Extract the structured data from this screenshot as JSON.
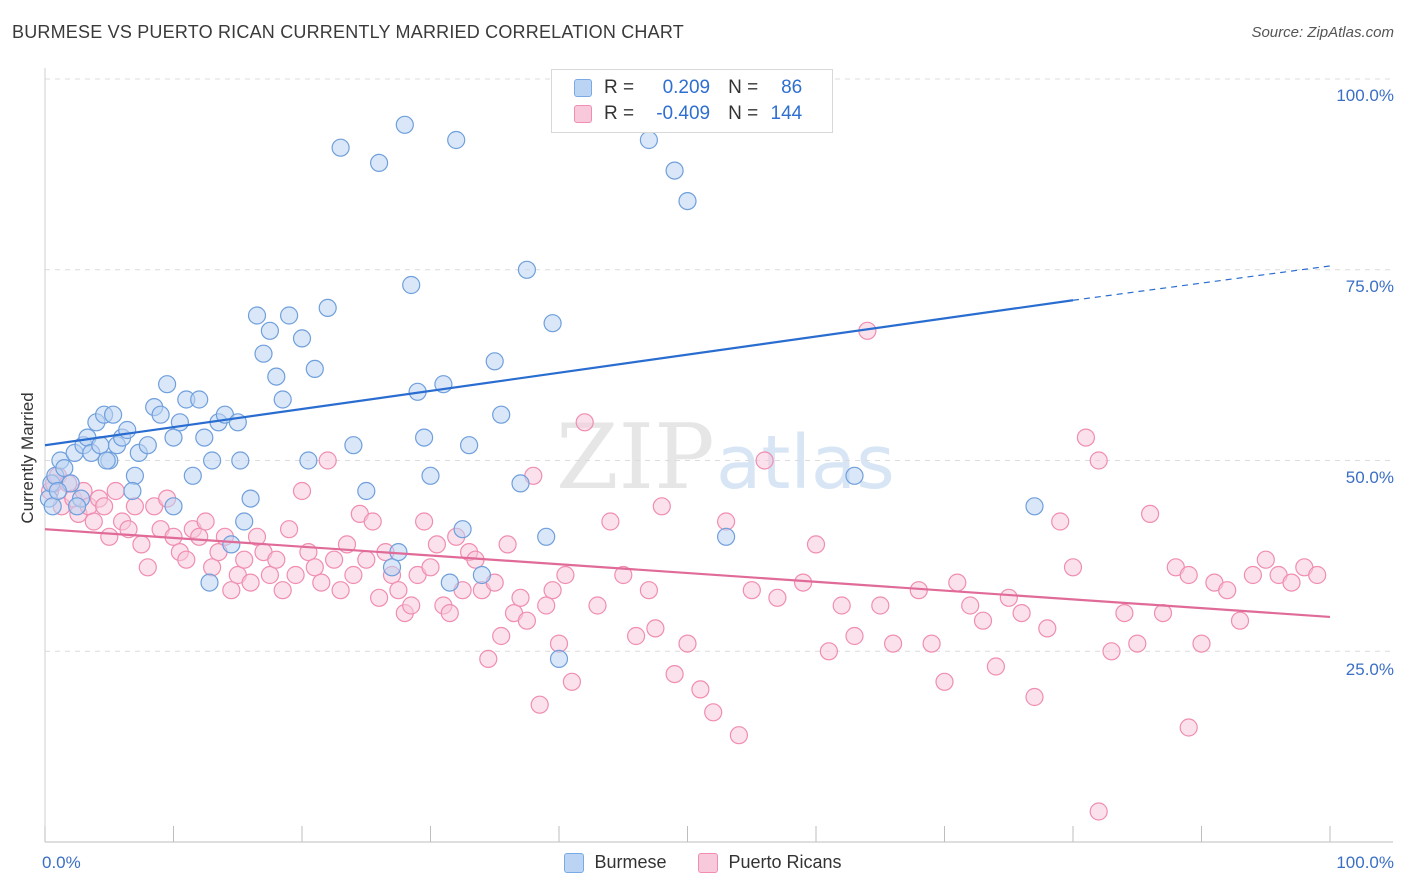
{
  "header": {
    "title": "BURMESE VS PUERTO RICAN CURRENTLY MARRIED CORRELATION CHART",
    "source": "Source: ZipAtlas.com"
  },
  "watermark": {
    "zip": "ZIP",
    "atlas": "atlas"
  },
  "legend": {
    "r_label": "R =",
    "n_label": "N =",
    "series": [
      {
        "name": "Burmese",
        "r": "0.209",
        "n": "86",
        "color": "#7aaae6",
        "fill": "#bcd4f3"
      },
      {
        "name": "Puerto Ricans",
        "r": "-0.409",
        "n": "144",
        "color": "#f08db0",
        "fill": "#f8c9da"
      }
    ]
  },
  "chart_data": {
    "type": "scatter",
    "title": "BURMESE VS PUERTO RICAN CURRENTLY MARRIED CORRELATION CHART",
    "xlabel": "",
    "ylabel": "Currently Married",
    "xlim": [
      0,
      100
    ],
    "ylim": [
      0,
      100
    ],
    "x_tick_labels": [
      "0.0%",
      "100.0%"
    ],
    "y_tick_labels": [
      "100.0%",
      "75.0%",
      "50.0%",
      "25.0%"
    ],
    "y_gridlines": [
      100,
      75,
      50,
      25
    ],
    "series": [
      {
        "name": "Burmese",
        "color": "#5b8fd9",
        "trend": {
          "x0": 0,
          "y0": 52,
          "x1": 80,
          "y1": 71,
          "dash_x1": 100,
          "dash_y1": 75.5,
          "color": "#2a6dd0"
        },
        "points": [
          [
            0.3,
            45
          ],
          [
            0.5,
            47
          ],
          [
            0.8,
            48
          ],
          [
            1.2,
            50
          ],
          [
            1.5,
            49
          ],
          [
            2,
            47
          ],
          [
            2.3,
            51
          ],
          [
            2.8,
            45
          ],
          [
            3,
            52
          ],
          [
            3.3,
            53
          ],
          [
            3.6,
            51
          ],
          [
            4,
            55
          ],
          [
            4.3,
            52
          ],
          [
            4.6,
            56
          ],
          [
            5,
            50
          ],
          [
            5.3,
            56
          ],
          [
            5.6,
            52
          ],
          [
            6,
            53
          ],
          [
            6.4,
            54
          ],
          [
            7,
            48
          ],
          [
            7.3,
            51
          ],
          [
            8,
            52
          ],
          [
            8.5,
            57
          ],
          [
            9,
            56
          ],
          [
            9.5,
            60
          ],
          [
            10,
            53
          ],
          [
            10.5,
            55
          ],
          [
            11,
            58
          ],
          [
            11.5,
            48
          ],
          [
            12,
            58
          ],
          [
            12.4,
            53
          ],
          [
            12.8,
            34
          ],
          [
            13,
            50
          ],
          [
            13.5,
            55
          ],
          [
            14,
            56
          ],
          [
            14.5,
            39
          ],
          [
            15,
            55
          ],
          [
            15.5,
            42
          ],
          [
            16,
            45
          ],
          [
            16.5,
            69
          ],
          [
            17,
            64
          ],
          [
            17.5,
            67
          ],
          [
            18,
            61
          ],
          [
            18.5,
            58
          ],
          [
            19,
            69
          ],
          [
            20,
            66
          ],
          [
            21,
            62
          ],
          [
            22,
            70
          ],
          [
            23,
            91
          ],
          [
            24,
            52
          ],
          [
            25,
            46
          ],
          [
            26,
            89
          ],
          [
            27,
            36
          ],
          [
            28,
            94
          ],
          [
            28.5,
            73
          ],
          [
            29,
            59
          ],
          [
            29.5,
            53
          ],
          [
            30,
            48
          ],
          [
            31,
            60
          ],
          [
            31.5,
            34
          ],
          [
            32,
            92
          ],
          [
            32.5,
            41
          ],
          [
            33,
            52
          ],
          [
            34,
            35
          ],
          [
            35,
            63
          ],
          [
            35.5,
            56
          ],
          [
            37,
            47
          ],
          [
            37.5,
            75
          ],
          [
            39,
            40
          ],
          [
            39.5,
            68
          ],
          [
            40,
            24
          ],
          [
            47,
            92
          ],
          [
            49,
            88
          ],
          [
            50,
            84
          ],
          [
            53,
            40
          ],
          [
            63,
            48
          ],
          [
            77,
            44
          ],
          [
            0.6,
            44
          ],
          [
            1,
            46
          ],
          [
            2.5,
            44
          ],
          [
            4.8,
            50
          ],
          [
            6.8,
            46
          ],
          [
            10,
            44
          ],
          [
            15.2,
            50
          ],
          [
            20.5,
            50
          ],
          [
            27.5,
            38
          ]
        ]
      },
      {
        "name": "Puerto Ricans",
        "color": "#f08db0",
        "trend": {
          "x0": 0,
          "y0": 41,
          "x1": 100,
          "y1": 29.5,
          "color": "#e06b98"
        },
        "points": [
          [
            0.4,
            46
          ],
          [
            0.7,
            47
          ],
          [
            1,
            48
          ],
          [
            1.3,
            44
          ],
          [
            1.8,
            47
          ],
          [
            2.2,
            45
          ],
          [
            2.6,
            43
          ],
          [
            3,
            46
          ],
          [
            3.4,
            44
          ],
          [
            3.8,
            42
          ],
          [
            4.2,
            45
          ],
          [
            4.6,
            44
          ],
          [
            5,
            40
          ],
          [
            5.5,
            46
          ],
          [
            6,
            42
          ],
          [
            6.5,
            41
          ],
          [
            7,
            44
          ],
          [
            7.5,
            39
          ],
          [
            8,
            36
          ],
          [
            8.5,
            44
          ],
          [
            9,
            41
          ],
          [
            9.5,
            45
          ],
          [
            10,
            40
          ],
          [
            10.5,
            38
          ],
          [
            11,
            37
          ],
          [
            11.5,
            41
          ],
          [
            12,
            40
          ],
          [
            12.5,
            42
          ],
          [
            13,
            36
          ],
          [
            13.5,
            38
          ],
          [
            14,
            40
          ],
          [
            14.5,
            33
          ],
          [
            15,
            35
          ],
          [
            15.5,
            37
          ],
          [
            16,
            34
          ],
          [
            16.5,
            40
          ],
          [
            17,
            38
          ],
          [
            17.5,
            35
          ],
          [
            18,
            37
          ],
          [
            18.5,
            33
          ],
          [
            19,
            41
          ],
          [
            19.5,
            35
          ],
          [
            20,
            46
          ],
          [
            20.5,
            38
          ],
          [
            21,
            36
          ],
          [
            21.5,
            34
          ],
          [
            22,
            50
          ],
          [
            22.5,
            37
          ],
          [
            23,
            33
          ],
          [
            23.5,
            39
          ],
          [
            24,
            35
          ],
          [
            24.5,
            43
          ],
          [
            25,
            37
          ],
          [
            25.5,
            42
          ],
          [
            26,
            32
          ],
          [
            26.5,
            38
          ],
          [
            27,
            35
          ],
          [
            27.5,
            33
          ],
          [
            28,
            30
          ],
          [
            28.5,
            31
          ],
          [
            29,
            35
          ],
          [
            29.5,
            42
          ],
          [
            30,
            36
          ],
          [
            30.5,
            39
          ],
          [
            31,
            31
          ],
          [
            31.5,
            30
          ],
          [
            32,
            40
          ],
          [
            32.5,
            33
          ],
          [
            33,
            38
          ],
          [
            33.5,
            37
          ],
          [
            34,
            33
          ],
          [
            34.5,
            24
          ],
          [
            35,
            34
          ],
          [
            35.5,
            27
          ],
          [
            36,
            39
          ],
          [
            36.5,
            30
          ],
          [
            37,
            32
          ],
          [
            37.5,
            29
          ],
          [
            38,
            48
          ],
          [
            38.5,
            18
          ],
          [
            39,
            31
          ],
          [
            39.5,
            33
          ],
          [
            40,
            26
          ],
          [
            40.5,
            35
          ],
          [
            41,
            21
          ],
          [
            42,
            55
          ],
          [
            43,
            31
          ],
          [
            44,
            42
          ],
          [
            45,
            35
          ],
          [
            46,
            27
          ],
          [
            47,
            33
          ],
          [
            47.5,
            28
          ],
          [
            48,
            44
          ],
          [
            49,
            22
          ],
          [
            50,
            26
          ],
          [
            51,
            20
          ],
          [
            52,
            17
          ],
          [
            53,
            42
          ],
          [
            54,
            14
          ],
          [
            55,
            33
          ],
          [
            56,
            50
          ],
          [
            57,
            32
          ],
          [
            59,
            34
          ],
          [
            60,
            39
          ],
          [
            61,
            25
          ],
          [
            62,
            31
          ],
          [
            63,
            27
          ],
          [
            64,
            67
          ],
          [
            65,
            31
          ],
          [
            66,
            26
          ],
          [
            68,
            33
          ],
          [
            69,
            26
          ],
          [
            70,
            21
          ],
          [
            71,
            34
          ],
          [
            72,
            31
          ],
          [
            73,
            29
          ],
          [
            74,
            23
          ],
          [
            75,
            32
          ],
          [
            76,
            30
          ],
          [
            77,
            19
          ],
          [
            78,
            28
          ],
          [
            79,
            42
          ],
          [
            80,
            36
          ],
          [
            81,
            53
          ],
          [
            82,
            50
          ],
          [
            83,
            25
          ],
          [
            84,
            30
          ],
          [
            85,
            26
          ],
          [
            86,
            43
          ],
          [
            87,
            30
          ],
          [
            88,
            36
          ],
          [
            89,
            35
          ],
          [
            90,
            26
          ],
          [
            91,
            34
          ],
          [
            92,
            33
          ],
          [
            93,
            29
          ],
          [
            94,
            35
          ],
          [
            95,
            37
          ],
          [
            96,
            35
          ],
          [
            97,
            34
          ],
          [
            98,
            36
          ],
          [
            99,
            35
          ],
          [
            82,
            4
          ],
          [
            89,
            15
          ]
        ]
      }
    ]
  }
}
